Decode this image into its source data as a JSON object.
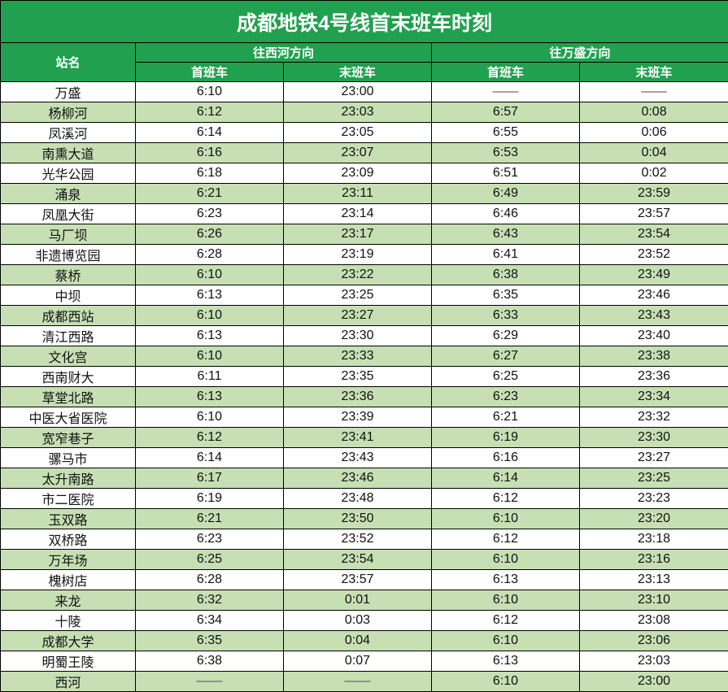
{
  "title": "成都地铁4号线首末班车时刻",
  "colors": {
    "header_green": "#21a04f",
    "alt_row": "#c6e0b4"
  },
  "headers": {
    "station": "站名",
    "dir_xihe": "往西河方向",
    "dir_wansheng": "往万盛方向",
    "first": "首班车",
    "last": "末班车"
  },
  "rows": [
    [
      "万盛",
      "6:10",
      "23:00",
      "——",
      "——"
    ],
    [
      "杨柳河",
      "6:12",
      "23:03",
      "6:57",
      "0:08"
    ],
    [
      "凤溪河",
      "6:14",
      "23:05",
      "6:55",
      "0:06"
    ],
    [
      "南熏大道",
      "6:16",
      "23:07",
      "6:53",
      "0:04"
    ],
    [
      "光华公园",
      "6:18",
      "23:09",
      "6:51",
      "0:02"
    ],
    [
      "涌泉",
      "6:21",
      "23:11",
      "6:49",
      "23:59"
    ],
    [
      "凤凰大街",
      "6:23",
      "23:14",
      "6:46",
      "23:57"
    ],
    [
      "马厂坝",
      "6:26",
      "23:17",
      "6:43",
      "23:54"
    ],
    [
      "非遗博览园",
      "6:28",
      "23:19",
      "6:41",
      "23:52"
    ],
    [
      "蔡桥",
      "6:10",
      "23:22",
      "6:38",
      "23:49"
    ],
    [
      "中坝",
      "6:13",
      "23:25",
      "6:35",
      "23:46"
    ],
    [
      "成都西站",
      "6:10",
      "23:27",
      "6:33",
      "23:43"
    ],
    [
      "清江西路",
      "6:13",
      "23:30",
      "6:29",
      "23:40"
    ],
    [
      "文化宫",
      "6:10",
      "23:33",
      "6:27",
      "23:38"
    ],
    [
      "西南财大",
      "6:11",
      "23:35",
      "6:25",
      "23:36"
    ],
    [
      "草堂北路",
      "6:13",
      "23:36",
      "6:23",
      "23:34"
    ],
    [
      "中医大省医院",
      "6:10",
      "23:39",
      "6:21",
      "23:32"
    ],
    [
      "宽窄巷子",
      "6:12",
      "23:41",
      "6:19",
      "23:30"
    ],
    [
      "骡马市",
      "6:14",
      "23:43",
      "6:16",
      "23:27"
    ],
    [
      "太升南路",
      "6:17",
      "23:46",
      "6:14",
      "23:25"
    ],
    [
      "市二医院",
      "6:19",
      "23:48",
      "6:12",
      "23:23"
    ],
    [
      "玉双路",
      "6:21",
      "23:50",
      "6:10",
      "23:20"
    ],
    [
      "双桥路",
      "6:23",
      "23:52",
      "6:12",
      "23:18"
    ],
    [
      "万年场",
      "6:25",
      "23:54",
      "6:10",
      "23:16"
    ],
    [
      "槐树店",
      "6:28",
      "23:57",
      "6:13",
      "23:13"
    ],
    [
      "来龙",
      "6:32",
      "0:01",
      "6:10",
      "23:10"
    ],
    [
      "十陵",
      "6:34",
      "0:03",
      "6:12",
      "23:08"
    ],
    [
      "成都大学",
      "6:35",
      "0:04",
      "6:10",
      "23:06"
    ],
    [
      "明蜀王陵",
      "6:38",
      "0:07",
      "6:13",
      "23:03"
    ],
    [
      "西河",
      "——",
      "——",
      "6:10",
      "23:00"
    ]
  ]
}
